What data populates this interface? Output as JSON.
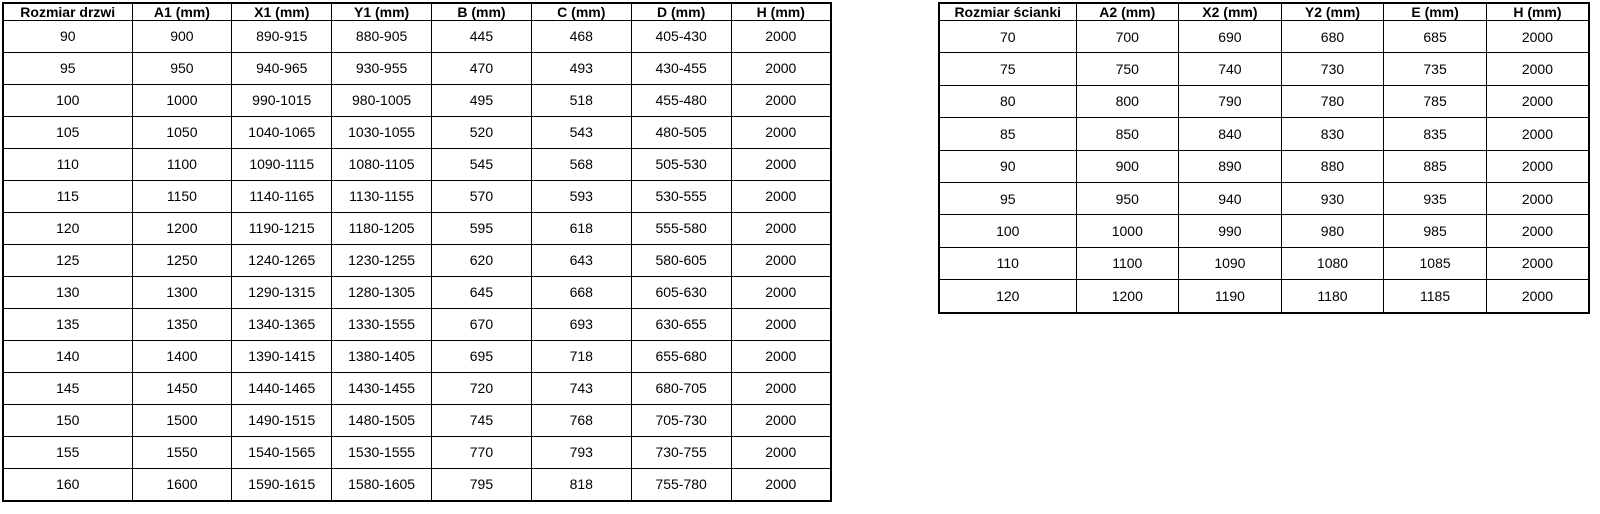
{
  "doors_table": {
    "headers": [
      "Rozmiar drzwi",
      "A1 (mm)",
      "X1 (mm)",
      "Y1 (mm)",
      "B (mm)",
      "C (mm)",
      "D (mm)",
      "H (mm)"
    ],
    "rows": [
      [
        "90",
        "900",
        "890-915",
        "880-905",
        "445",
        "468",
        "405-430",
        "2000"
      ],
      [
        "95",
        "950",
        "940-965",
        "930-955",
        "470",
        "493",
        "430-455",
        "2000"
      ],
      [
        "100",
        "1000",
        "990-1015",
        "980-1005",
        "495",
        "518",
        "455-480",
        "2000"
      ],
      [
        "105",
        "1050",
        "1040-1065",
        "1030-1055",
        "520",
        "543",
        "480-505",
        "2000"
      ],
      [
        "110",
        "1100",
        "1090-1115",
        "1080-1105",
        "545",
        "568",
        "505-530",
        "2000"
      ],
      [
        "115",
        "1150",
        "1140-1165",
        "1130-1155",
        "570",
        "593",
        "530-555",
        "2000"
      ],
      [
        "120",
        "1200",
        "1190-1215",
        "1180-1205",
        "595",
        "618",
        "555-580",
        "2000"
      ],
      [
        "125",
        "1250",
        "1240-1265",
        "1230-1255",
        "620",
        "643",
        "580-605",
        "2000"
      ],
      [
        "130",
        "1300",
        "1290-1315",
        "1280-1305",
        "645",
        "668",
        "605-630",
        "2000"
      ],
      [
        "135",
        "1350",
        "1340-1365",
        "1330-1555",
        "670",
        "693",
        "630-655",
        "2000"
      ],
      [
        "140",
        "1400",
        "1390-1415",
        "1380-1405",
        "695",
        "718",
        "655-680",
        "2000"
      ],
      [
        "145",
        "1450",
        "1440-1465",
        "1430-1455",
        "720",
        "743",
        "680-705",
        "2000"
      ],
      [
        "150",
        "1500",
        "1490-1515",
        "1480-1505",
        "745",
        "768",
        "705-730",
        "2000"
      ],
      [
        "155",
        "1550",
        "1540-1565",
        "1530-1555",
        "770",
        "793",
        "730-755",
        "2000"
      ],
      [
        "160",
        "1600",
        "1590-1615",
        "1580-1605",
        "795",
        "818",
        "755-780",
        "2000"
      ]
    ]
  },
  "walls_table": {
    "headers": [
      "Rozmiar ścianki",
      "A2 (mm)",
      "X2 (mm)",
      "Y2 (mm)",
      "E (mm)",
      "H (mm)"
    ],
    "rows": [
      [
        "70",
        "700",
        "690",
        "680",
        "685",
        "2000"
      ],
      [
        "75",
        "750",
        "740",
        "730",
        "735",
        "2000"
      ],
      [
        "80",
        "800",
        "790",
        "780",
        "785",
        "2000"
      ],
      [
        "85",
        "850",
        "840",
        "830",
        "835",
        "2000"
      ],
      [
        "90",
        "900",
        "890",
        "880",
        "885",
        "2000"
      ],
      [
        "95",
        "950",
        "940",
        "930",
        "935",
        "2000"
      ],
      [
        "100",
        "1000",
        "990",
        "980",
        "985",
        "2000"
      ],
      [
        "110",
        "1100",
        "1090",
        "1080",
        "1085",
        "2000"
      ],
      [
        "120",
        "1200",
        "1190",
        "1180",
        "1185",
        "2000"
      ]
    ]
  },
  "colors": {
    "border": "#000000",
    "text": "#000000",
    "background": "#ffffff"
  }
}
